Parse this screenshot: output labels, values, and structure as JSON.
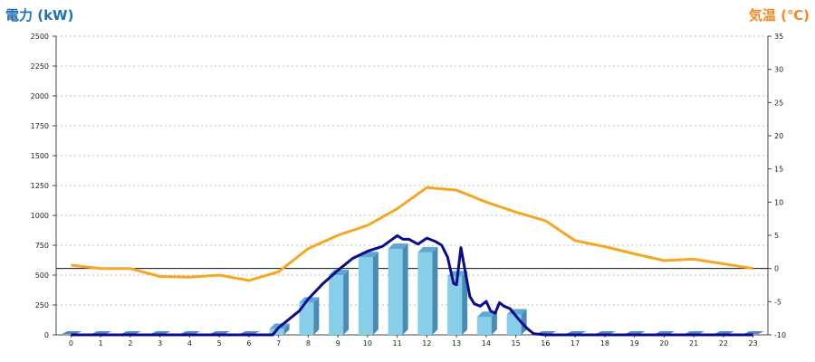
{
  "chart_data": {
    "type": "bar",
    "ylabel_left": "電力 (kW)",
    "ylabel_right": "気温 (℃)",
    "categories": [
      "0",
      "1",
      "2",
      "3",
      "4",
      "5",
      "6",
      "7",
      "8",
      "9",
      "10",
      "11",
      "12",
      "13",
      "14",
      "15",
      "16",
      "17",
      "18",
      "19",
      "20",
      "21",
      "22",
      "23"
    ],
    "ylim_left": [
      0,
      2500
    ],
    "yticks_left": [
      0,
      250,
      500,
      750,
      1000,
      1250,
      1500,
      1750,
      2000,
      2250,
      2500
    ],
    "ylim_right": [
      -10,
      35
    ],
    "yticks_right": [
      -10,
      -5,
      0,
      5,
      10,
      15,
      20,
      25,
      30,
      35
    ],
    "grid": true,
    "series": [
      {
        "kind": "bar",
        "axis": "left",
        "values": [
          0,
          0,
          0,
          0,
          0,
          0,
          0,
          50,
          270,
          500,
          650,
          720,
          690,
          490,
          150,
          170,
          0,
          0,
          0,
          0,
          0,
          0,
          0,
          0
        ],
        "color": "#87ceeb",
        "empty_color": "#4f86c6"
      },
      {
        "kind": "line",
        "axis": "left",
        "color": "#0a0a8c",
        "x": [
          0,
          1,
          2,
          3,
          4,
          5,
          6,
          6.8,
          7,
          7.3,
          7.7,
          8,
          8.5,
          9,
          9.5,
          10,
          10.5,
          11,
          11.2,
          11.4,
          11.7,
          12,
          12.3,
          12.5,
          12.7,
          12.9,
          13,
          13.15,
          13.3,
          13.45,
          13.6,
          13.8,
          14,
          14.15,
          14.3,
          14.45,
          14.6,
          14.8,
          15,
          15.2,
          15.4,
          15.6,
          16,
          17,
          18,
          19,
          20,
          21,
          22,
          23
        ],
        "y": [
          0,
          0,
          0,
          0,
          0,
          0,
          0,
          0,
          60,
          120,
          200,
          300,
          430,
          540,
          640,
          700,
          740,
          830,
          800,
          800,
          760,
          810,
          780,
          750,
          650,
          430,
          420,
          730,
          520,
          320,
          260,
          240,
          280,
          200,
          180,
          270,
          240,
          220,
          160,
          100,
          50,
          10,
          0,
          0,
          0,
          0,
          0,
          0,
          0,
          0
        ]
      },
      {
        "kind": "line",
        "axis": "right",
        "color": "#f5a623",
        "x": [
          0,
          1,
          2,
          3,
          4,
          5,
          6,
          7,
          8,
          9,
          10,
          11,
          12,
          13,
          14,
          15,
          16,
          17,
          18,
          19,
          20,
          21,
          22,
          23
        ],
        "y": [
          0.5,
          0,
          0,
          -1.2,
          -1.3,
          -1,
          -1.8,
          -0.5,
          3,
          5,
          6.5,
          9,
          12.2,
          11.8,
          10,
          8.5,
          7.2,
          4.2,
          3.3,
          2.2,
          1.2,
          1.4,
          0.7,
          0
        ]
      }
    ]
  }
}
